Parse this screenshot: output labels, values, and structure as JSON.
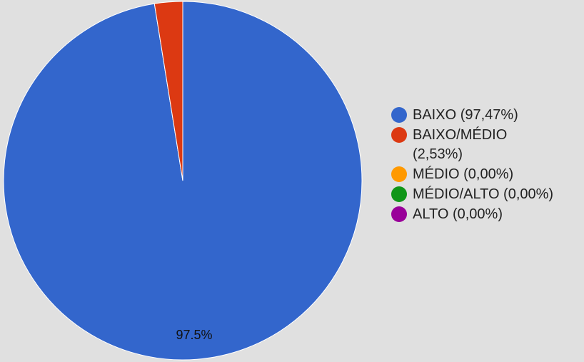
{
  "chart_data": {
    "type": "pie",
    "categories": [
      "BAIXO",
      "BAIXO/MÉDIO",
      "MÉDIO",
      "MÉDIO/ALTO",
      "ALTO"
    ],
    "values": [
      97.47,
      2.53,
      0.0,
      0.0,
      0.0
    ],
    "colors": [
      "#3366cc",
      "#dc3912",
      "#ff9900",
      "#109618",
      "#990099"
    ],
    "legend": [
      "BAIXO (97,47%)",
      "BAIXO/MÉDIO (2,53%)",
      "MÉDIO (0,00%)",
      "MÉDIO/ALTO (0,00%)",
      "ALTO (0,00%)"
    ],
    "data_labels": [
      "97.5%"
    ],
    "legend_position": "right"
  }
}
